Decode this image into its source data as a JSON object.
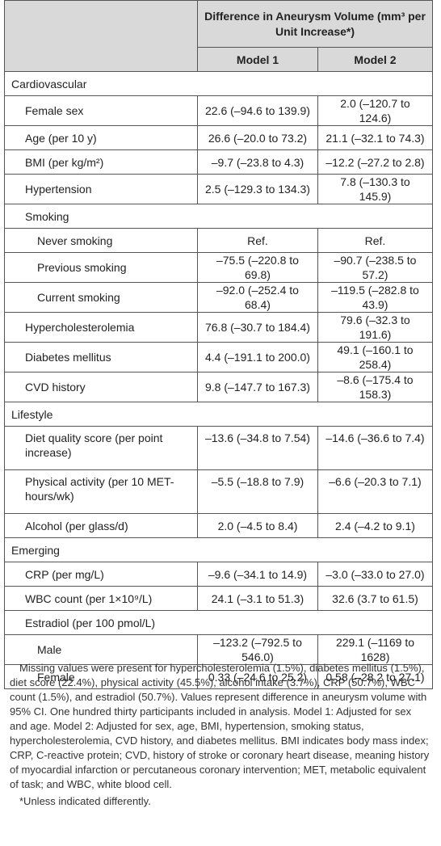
{
  "table": {
    "header": {
      "title": "Difference in Aneurysm Volume (mm³ per Unit Increase*)",
      "columns": [
        "Model 1",
        "Model 2"
      ]
    },
    "sections": [
      {
        "title": "Cardiovascular",
        "rows": [
          {
            "label": "Female sex",
            "values": [
              "22.6 (–94.6 to 139.9)",
              "2.0 (–120.7 to 124.6)"
            ]
          },
          {
            "label": "Age (per 10 y)",
            "values": [
              "26.6 (–20.0 to 73.2)",
              "21.1 (–32.1 to 74.3)"
            ]
          },
          {
            "label": "BMI (per kg/m²)",
            "values": [
              "–9.7 (–23.8 to 4.3)",
              "–12.2 (–27.2 to 2.8)"
            ]
          },
          {
            "label": "Hypertension",
            "values": [
              "2.5 (–129.3 to 134.3)",
              "7.8 (–130.3 to 145.9)"
            ]
          },
          {
            "label": "Smoking",
            "rows": [
              {
                "label": "Never smoking",
                "values": [
                  "Ref.",
                  "Ref."
                ]
              },
              {
                "label": "Previous smoking",
                "values": [
                  "–75.5 (–220.8 to 69.8)",
                  "–90.7 (–238.5 to 57.2)"
                ]
              },
              {
                "label": "Current smoking",
                "values": [
                  "–92.0 (–252.4 to 68.4)",
                  "–119.5 (–282.8 to 43.9)"
                ]
              }
            ]
          },
          {
            "label": "Hypercholesterolemia",
            "values": [
              "76.8 (–30.7 to 184.4)",
              "79.6 (–32.3 to 191.6)"
            ]
          },
          {
            "label": "Diabetes mellitus",
            "values": [
              "4.4 (–191.1 to 200.0)",
              "49.1 (–160.1 to 258.4)"
            ]
          },
          {
            "label": "CVD history",
            "values": [
              "9.8 (–147.7 to 167.3)",
              "–8.6 (–175.4 to 158.3)"
            ]
          }
        ]
      },
      {
        "title": "Lifestyle",
        "rows": [
          {
            "label": "Diet quality score (per point increase)",
            "values": [
              "–13.6 (–34.8 to 7.54)",
              "–14.6 (–36.6 to 7.4)"
            ]
          },
          {
            "label": "Physical activity (per 10 MET-hours/wk)",
            "values": [
              "–5.5 (–18.8 to 7.9)",
              "–6.6 (–20.3 to 7.1)"
            ]
          },
          {
            "label": "Alcohol (per glass/d)",
            "values": [
              "2.0 (–4.5 to 8.4)",
              "2.4 (–4.2 to 9.1)"
            ]
          }
        ]
      },
      {
        "title": "Emerging",
        "rows": [
          {
            "label": "CRP (per mg/L)",
            "values": [
              "–9.6 (–34.1 to 14.9)",
              "–3.0 (–33.0 to 27.0)"
            ]
          },
          {
            "label": "WBC count (per 1×10⁹/L)",
            "values": [
              "24.1 (–3.1 to 51.3)",
              "32.6 (3.7 to 61.5)"
            ]
          },
          {
            "label": "Estradiol (per 100 pmol/L)",
            "rows": [
              {
                "label": "Male",
                "values": [
                  "–123.2 (–792.5 to 546.0)",
                  "229.1 (–1169 to 1628)"
                ]
              },
              {
                "label": "Female",
                "values": [
                  "0.33 (–24.6 to 25.2)",
                  "0.58 (–28.2 to 27.1)"
                ]
              }
            ]
          }
        ]
      }
    ]
  },
  "footnotes": [
    "Missing values were present for hypercholesterolemia (1.5%), diabetes mellitus (1.5%), diet score (22.4%), physical activity (45.5%), alcohol intake (3.7%), CRP (50.7%), WBC count (1.5%), and estradiol (50.7%). Values represent difference in aneurysm volume with 95% CI. One hundred thirty participants included in analysis. Model 1: Adjusted for sex and age. Model 2: Adjusted for sex, age, BMI, hypertension, smoking status, hypercholesterolemia, CVD history, and diabetes mellitus. BMI indicates body mass index; CRP, C-reactive protein; CVD, history of stroke or coronary heart disease, meaning history of myocardial infarction or percutaneous coronary intervention; MET, metabolic equivalent of task; and WBC, white blood cell.",
    "*Unless indicated differently."
  ]
}
